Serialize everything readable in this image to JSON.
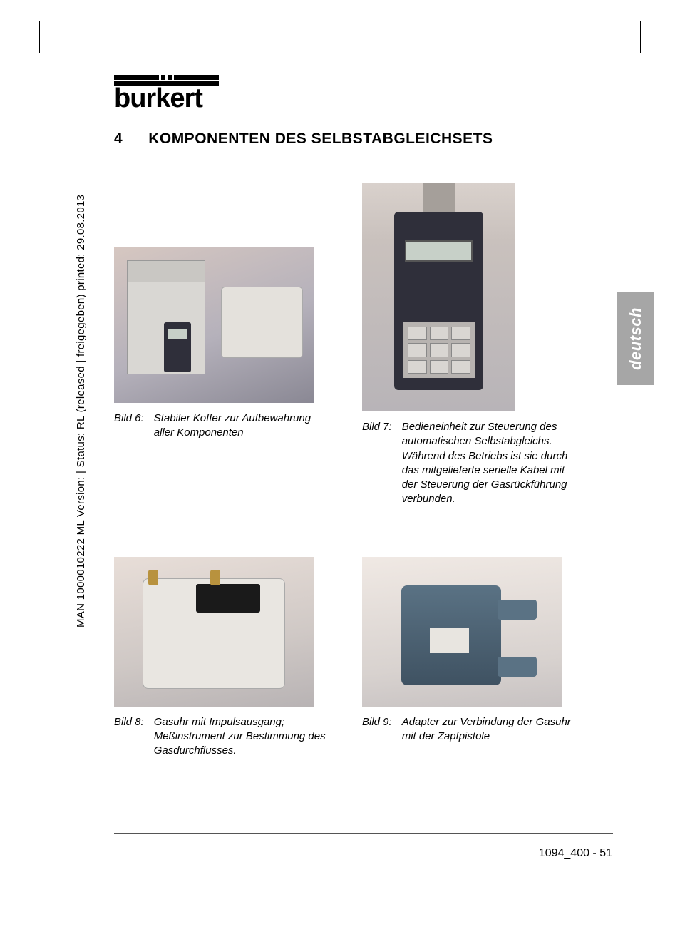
{
  "document": {
    "brand": "burkert",
    "section_number": "4",
    "section_title": "KOMPONENTEN DES SELBSTABGLEICHSETS",
    "language_tab": "deutsch",
    "side_meta": "MAN  1000010222  ML   Version:  |  Status: RL (released | freigegeben)   printed: 29.08.2013",
    "footer": "1094_400  -  51"
  },
  "figures": {
    "f6": {
      "label": "Bild 6:",
      "caption": "Stabiler Koffer zur Aufbewahrung aller Komponenten",
      "alt": "Koffer mit Komponenten"
    },
    "f7": {
      "label": "Bild 7:",
      "caption": "Bedieneinheit zur Steuerung des automatischen Selbstabgleichs. Während des Betriebs ist sie durch das mitgelieferte serielle Kabel  mit der Steuerung der Gasrückführung verbunden.",
      "alt": "Bedieneinheit"
    },
    "f8": {
      "label": "Bild 8:",
      "caption": "Gasuhr mit Impulsausgang; Meßinstrument zur Bestimmung des Gasdurchflusses.",
      "alt": "Gasuhr"
    },
    "f9": {
      "label": "Bild 9:",
      "caption": "Adapter zur Verbindung der Gasuhr mit der Zapfpistole",
      "alt": "Adapter"
    }
  },
  "colors": {
    "text": "#000000",
    "rule": "#555555",
    "tab_bg": "#a6a6a6",
    "tab_text": "#ffffff"
  }
}
